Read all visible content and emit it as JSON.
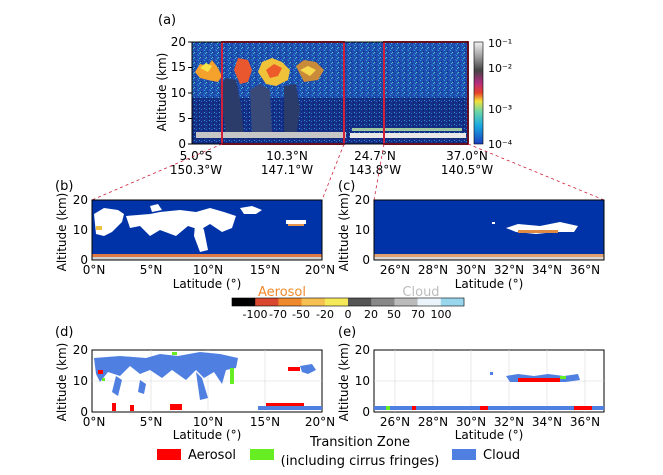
{
  "figure": {
    "panel_a": {
      "label": "(a)",
      "ylabel": "Altitude (km)",
      "yticks": [
        "0",
        "5",
        "10",
        "15",
        "20"
      ],
      "xticks": [
        {
          "lat": "5.0°S",
          "lon": "150.3°W"
        },
        {
          "lat": "10.3°N",
          "lon": "147.1°W"
        },
        {
          "lat": "24.7°N",
          "lon": "143.8°W"
        },
        {
          "lat": "37.0°N",
          "lon": "140.5°W"
        }
      ],
      "colorbar_ticks": [
        "10⁻¹",
        "10⁻²",
        "10⁻³",
        "10⁻⁴"
      ],
      "highlight_color": "#d0203a"
    },
    "panel_b": {
      "label": "(b)",
      "ylabel": "Altitude (km)",
      "xlabel": "Latitude (°)",
      "yticks": [
        "0",
        "10",
        "20"
      ],
      "xticks": [
        "0°N",
        "5°N",
        "10°N",
        "15°N",
        "20°N"
      ]
    },
    "panel_c": {
      "label": "(c)",
      "ylabel": "Altitude (km)",
      "xlabel": "Latitude (°)",
      "yticks": [
        "0",
        "10",
        "20"
      ],
      "xticks": [
        "26°N",
        "28°N",
        "30°N",
        "32°N",
        "34°N",
        "36°N"
      ]
    },
    "class_colorbar": {
      "aerosol_label": "Aerosol",
      "cloud_label": "Cloud",
      "ticks": [
        "-100",
        "-70",
        "-50",
        "-20",
        "0",
        "20",
        "50",
        "70",
        "100"
      ],
      "colors": [
        "#000000",
        "#d8472e",
        "#ee8a2c",
        "#f5bf52",
        "#f5e95a",
        "#555555",
        "#888888",
        "#bbbbbb",
        "#eaf4fa",
        "#98d6ee"
      ]
    },
    "panel_d": {
      "label": "(d)",
      "ylabel": "Altitude (km)",
      "xlabel": "Latitude (°)",
      "yticks": [
        "0",
        "10",
        "20"
      ],
      "xticks": [
        "0°N",
        "5°N",
        "10°N",
        "15°N",
        "20°N"
      ]
    },
    "panel_e": {
      "label": "(e)",
      "ylabel": "Altitude (km)",
      "xlabel": "Latitude (°)",
      "yticks": [
        "0",
        "10",
        "20"
      ],
      "xticks": [
        "26°N",
        "28°N",
        "30°N",
        "32°N",
        "34°N",
        "36°N"
      ]
    },
    "legend": {
      "aerosol": {
        "label": "Aerosol",
        "color": "#ff0000"
      },
      "transition": {
        "label": "Transition Zone",
        "sublabel": "(including cirrus fringes)",
        "color": "#66ee22"
      },
      "cloud": {
        "label": "Cloud",
        "color": "#4f7fe0"
      }
    }
  }
}
